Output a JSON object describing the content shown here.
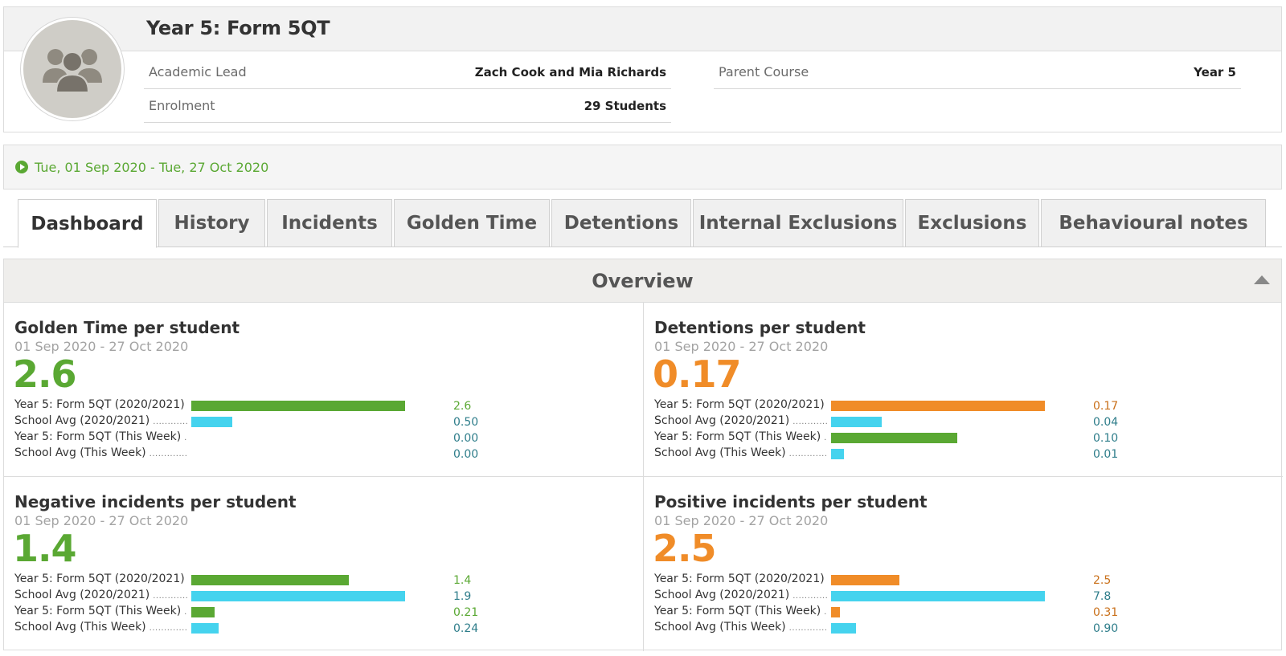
{
  "header": {
    "title": "Year 5: Form 5QT",
    "academic_lead_label": "Academic Lead",
    "academic_lead_value": "Zach Cook and Mia Richards",
    "enrolment_label": "Enrolment",
    "enrolment_value": "29 Students",
    "parent_course_label": "Parent Course",
    "parent_course_value": "Year 5"
  },
  "date_range": "Tue, 01 Sep 2020 - Tue, 27 Oct 2020",
  "tabs": [
    {
      "label": "Dashboard",
      "active": true
    },
    {
      "label": "History"
    },
    {
      "label": "Incidents"
    },
    {
      "label": "Golden Time"
    },
    {
      "label": "Detentions"
    },
    {
      "label": "Internal Exclusions"
    },
    {
      "label": "Exclusions"
    },
    {
      "label": "Behavioural notes"
    }
  ],
  "overview": {
    "title": "Overview",
    "colors": {
      "green": "#5aa833",
      "orange": "#f08c28",
      "cyan": "#45d3ee",
      "teal_text": "#2e7d8a"
    },
    "widgets": [
      {
        "title": "Golden Time per student",
        "range": "01 Sep 2020 - 27 Oct 2020",
        "big_value": "2.6",
        "accent": "green",
        "rows": [
          {
            "label": "Year 5: Form 5QT (2020/2021)",
            "value": "2.6",
            "fraction": 1.0,
            "color": "#5aa833",
            "value_color": "#5aa833"
          },
          {
            "label": "School Avg (2020/2021)",
            "value": "0.50",
            "fraction": 0.19,
            "color": "#45d3ee",
            "value_color": "#2e7d8a"
          },
          {
            "label": "Year 5: Form 5QT (This Week)",
            "value": "0.00",
            "fraction": 0.0,
            "color": "#5aa833",
            "value_color": "#2e7d8a"
          },
          {
            "label": "School Avg (This Week)",
            "value": "0.00",
            "fraction": 0.0,
            "color": "#45d3ee",
            "value_color": "#2e7d8a"
          }
        ]
      },
      {
        "title": "Detentions per student",
        "range": "01 Sep 2020 - 27 Oct 2020",
        "big_value": "0.17",
        "accent": "orange",
        "rows": [
          {
            "label": "Year 5: Form 5QT (2020/2021)",
            "value": "0.17",
            "fraction": 1.0,
            "color": "#f08c28",
            "value_color": "#c9701a"
          },
          {
            "label": "School Avg (2020/2021)",
            "value": "0.04",
            "fraction": 0.235,
            "color": "#45d3ee",
            "value_color": "#2e7d8a"
          },
          {
            "label": "Year 5: Form 5QT (This Week)",
            "value": "0.10",
            "fraction": 0.59,
            "color": "#5aa833",
            "value_color": "#2e7d8a"
          },
          {
            "label": "School Avg (This Week)",
            "value": "0.01",
            "fraction": 0.06,
            "color": "#45d3ee",
            "value_color": "#2e7d8a"
          }
        ]
      },
      {
        "title": "Negative incidents per student",
        "range": "01 Sep 2020 - 27 Oct 2020",
        "big_value": "1.4",
        "accent": "green",
        "rows": [
          {
            "label": "Year 5: Form 5QT (2020/2021)",
            "value": "1.4",
            "fraction": 0.737,
            "color": "#5aa833",
            "value_color": "#5aa833"
          },
          {
            "label": "School Avg (2020/2021)",
            "value": "1.9",
            "fraction": 1.0,
            "color": "#45d3ee",
            "value_color": "#2e7d8a"
          },
          {
            "label": "Year 5: Form 5QT (This Week)",
            "value": "0.21",
            "fraction": 0.11,
            "color": "#5aa833",
            "value_color": "#5aa833"
          },
          {
            "label": "School Avg (This Week)",
            "value": "0.24",
            "fraction": 0.126,
            "color": "#45d3ee",
            "value_color": "#2e7d8a"
          }
        ]
      },
      {
        "title": "Positive incidents per student",
        "range": "01 Sep 2020 - 27 Oct 2020",
        "big_value": "2.5",
        "accent": "orange",
        "rows": [
          {
            "label": "Year 5: Form 5QT (2020/2021)",
            "value": "2.5",
            "fraction": 0.32,
            "color": "#f08c28",
            "value_color": "#c9701a"
          },
          {
            "label": "School Avg (2020/2021)",
            "value": "7.8",
            "fraction": 1.0,
            "color": "#45d3ee",
            "value_color": "#2e7d8a"
          },
          {
            "label": "Year 5: Form 5QT (This Week)",
            "value": "0.31",
            "fraction": 0.04,
            "color": "#f08c28",
            "value_color": "#c9701a"
          },
          {
            "label": "School Avg (This Week)",
            "value": "0.90",
            "fraction": 0.115,
            "color": "#45d3ee",
            "value_color": "#2e7d8a"
          }
        ]
      }
    ]
  }
}
